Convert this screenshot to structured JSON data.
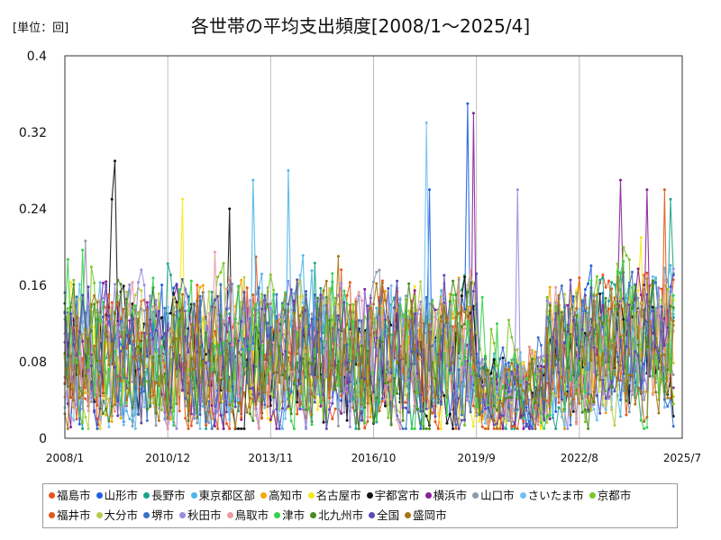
{
  "chart_data": {
    "type": "line",
    "title": "各世帯の平均支出頻度[2008/1～2025/4]",
    "unit_label": "[単位：回]",
    "x_range": [
      "2008/1",
      "2025/7"
    ],
    "x_ticks": [
      "2008/1",
      "2010/12",
      "2013/11",
      "2016/10",
      "2019/9",
      "2022/8",
      "2025/7"
    ],
    "ylim": [
      0,
      0.4
    ],
    "y_ticks": [
      "0",
      "0.08",
      "0.16",
      "0.24",
      "0.32",
      "0.4"
    ],
    "grid": "vertical",
    "legend_position": "bottom",
    "series": [
      {
        "name": "福島市",
        "color": "#e8541e"
      },
      {
        "name": "山形市",
        "color": "#1f5fe0"
      },
      {
        "name": "長野市",
        "color": "#1aa58a"
      },
      {
        "name": "東京都区部",
        "color": "#4fb6e8"
      },
      {
        "name": "高知市",
        "color": "#f5a800"
      },
      {
        "name": "名古屋市",
        "color": "#f7e81a"
      },
      {
        "name": "宇都宮市",
        "color": "#111111"
      },
      {
        "name": "横浜市",
        "color": "#8a1f9a"
      },
      {
        "name": "山口市",
        "color": "#8c9aa8"
      },
      {
        "name": "さいたま市",
        "color": "#6fc1ef"
      },
      {
        "name": "京都市",
        "color": "#7cc62a"
      },
      {
        "name": "福井市",
        "color": "#e05a1a"
      },
      {
        "name": "大分市",
        "color": "#b6cc4a"
      },
      {
        "name": "堺市",
        "color": "#3a70c8"
      },
      {
        "name": "秋田市",
        "color": "#9a8ae0"
      },
      {
        "name": "鳥取市",
        "color": "#e89aa0"
      },
      {
        "name": "津市",
        "color": "#36d14a"
      },
      {
        "name": "北九州市",
        "color": "#4a8a20"
      },
      {
        "name": "全国",
        "color": "#5a4ab8"
      },
      {
        "name": "盛岡市",
        "color": "#a8741a"
      }
    ],
    "highlights": [
      {
        "series": "宇都宮市",
        "x": "2009/6",
        "y": 0.29
      },
      {
        "series": "宇都宮市",
        "x": "2009/5",
        "y": 0.25
      },
      {
        "series": "名古屋市",
        "x": "2011/5",
        "y": 0.25
      },
      {
        "series": "宇都宮市",
        "x": "2012/9",
        "y": 0.24
      },
      {
        "series": "東京都区部",
        "x": "2013/5",
        "y": 0.27
      },
      {
        "series": "東京都区部",
        "x": "2014/5",
        "y": 0.28
      },
      {
        "series": "さいたま市",
        "x": "2018/4",
        "y": 0.33
      },
      {
        "series": "山形市",
        "x": "2018/5",
        "y": 0.26
      },
      {
        "series": "山形市",
        "x": "2019/6",
        "y": 0.35
      },
      {
        "series": "横浜市",
        "x": "2019/8",
        "y": 0.34
      },
      {
        "series": "秋田市",
        "x": "2020/11",
        "y": 0.26
      },
      {
        "series": "横浜市",
        "x": "2023/10",
        "y": 0.27
      },
      {
        "series": "横浜市",
        "x": "2024/7",
        "y": 0.26
      },
      {
        "series": "福井市",
        "x": "2025/1",
        "y": 0.26
      },
      {
        "series": "長野市",
        "x": "2025/3",
        "y": 0.25
      }
    ]
  }
}
